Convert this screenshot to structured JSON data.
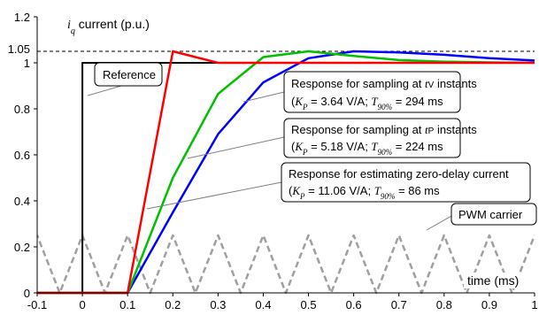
{
  "chart_data": {
    "type": "line",
    "ylabel_var": "i",
    "ylabel_sub": "q",
    "ylabel_rest": " current (p.u.)",
    "xlabel": "time (ms)",
    "xlim": [
      -0.1,
      1.0
    ],
    "ylim": [
      0,
      1.2
    ],
    "xticks": [
      -0.1,
      0,
      0.1,
      0.2,
      0.3,
      0.4,
      0.5,
      0.6,
      0.7,
      0.8,
      0.9,
      1
    ],
    "xtick_labels": [
      "-0.1",
      "0",
      "0.1",
      "0.2",
      "0.3",
      "0.4",
      "0.5",
      "0.6",
      "0.7",
      "0.8",
      "0.9",
      "1"
    ],
    "yticks": [
      0,
      0.2,
      0.4,
      0.6,
      0.8,
      1,
      1.2
    ],
    "ytick_labels": [
      "0",
      "0.2",
      "0.4",
      "0.6",
      "0.8",
      "1",
      "1.2"
    ],
    "extra_ytick": 1.05,
    "extra_ytick_label": "1.05",
    "dashed_level": 1.05,
    "grid": false,
    "series": [
      {
        "key": "reference",
        "color": "#000000",
        "x": [
          -0.1,
          0,
          0,
          1.0
        ],
        "y": [
          0,
          0,
          1,
          1
        ]
      },
      {
        "key": "red",
        "color": "#ff0000",
        "x": [
          -0.1,
          0.1,
          0.2,
          0.3,
          0.4,
          0.5,
          0.6,
          0.7,
          0.8,
          0.9,
          1.0
        ],
        "y": [
          0,
          0,
          1.05,
          1.0,
          1.0,
          1.0,
          1.0,
          1.0,
          1.0,
          1.0,
          1.0
        ]
      },
      {
        "key": "green",
        "color": "#00c000",
        "x": [
          -0.1,
          0.1,
          0.2,
          0.3,
          0.4,
          0.5,
          0.6,
          0.7,
          0.8,
          0.9,
          1.0
        ],
        "y": [
          0,
          0,
          0.5,
          0.865,
          1.025,
          1.05,
          1.03,
          1.012,
          1.005,
          1.002,
          1.0
        ]
      },
      {
        "key": "blue",
        "color": "#0000ff",
        "x": [
          -0.1,
          0.1,
          0.2,
          0.3,
          0.4,
          0.5,
          0.6,
          0.7,
          0.8,
          0.9,
          1.0
        ],
        "y": [
          0,
          0,
          0.35,
          0.69,
          0.915,
          1.02,
          1.05,
          1.045,
          1.035,
          1.02,
          1.01
        ]
      },
      {
        "key": "carrier",
        "color": "#a0a0a0",
        "x": [
          -0.15,
          -0.1,
          -0.05,
          0,
          0.05,
          0.1,
          0.15,
          0.2,
          0.25,
          0.3,
          0.35,
          0.4,
          0.45,
          0.5,
          0.55,
          0.6,
          0.65,
          0.7,
          0.75,
          0.8,
          0.85,
          0.9,
          0.95,
          1.0
        ],
        "y": [
          0,
          0.25,
          0,
          0.25,
          0,
          0.25,
          0,
          0.25,
          0,
          0.25,
          0,
          0.25,
          0,
          0.25,
          0,
          0.25,
          0,
          0.25,
          0,
          0.25,
          0,
          0.25,
          0,
          0.25
        ]
      }
    ],
    "annotations": {
      "reference": "Reference",
      "pwm": "PWM carrier",
      "tv_line1_a": "Response for sampling at ",
      "tv_line1_b": "t",
      "tv_line1_c": "V",
      "tv_line1_d": " instants",
      "tv_line2_a": "(",
      "tv_line2_K": "K",
      "tv_line2_Ksub": "P",
      "tv_line2_b": " = 3.64 V/A; ",
      "tv_line2_T": "T",
      "tv_line2_Tsub": "90%",
      "tv_line2_c": " = 294 ms",
      "tp_line1_a": "Response for sampling at ",
      "tp_line1_b": "t",
      "tp_line1_c": "P",
      "tp_line1_d": " instants",
      "tp_line2_a": "(",
      "tp_line2_K": "K",
      "tp_line2_Ksub": "P",
      "tp_line2_b": " = 5.18 V/A; ",
      "tp_line2_T": "T",
      "tp_line2_Tsub": "90%",
      "tp_line2_c": " = 224 ms",
      "zd_line1": "Response for estimating zero-delay current",
      "zd_line2_a": "(",
      "zd_line2_K": "K",
      "zd_line2_Ksub": "P",
      "zd_line2_b": " = 11.06 V/A; ",
      "zd_line2_T": "T",
      "zd_line2_Tsub": "90%",
      "zd_line2_c": " = 86 ms"
    }
  }
}
